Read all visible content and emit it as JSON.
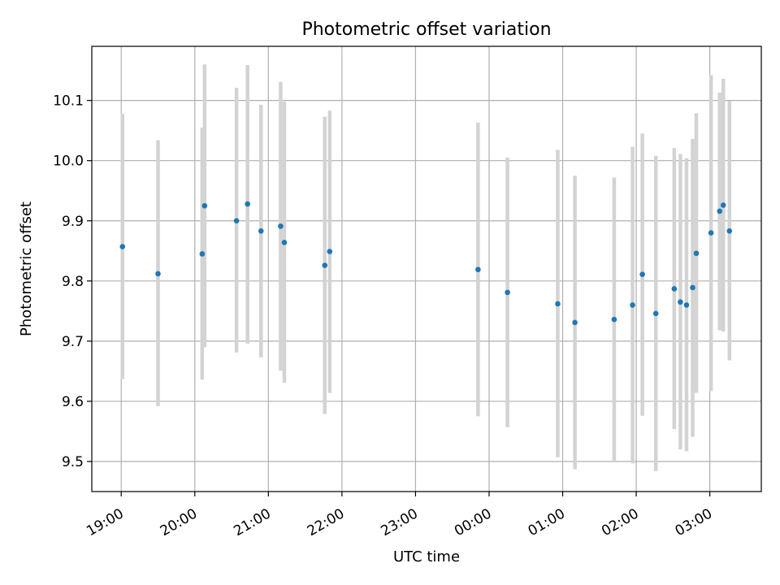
{
  "chart_data": {
    "type": "scatter",
    "title": "Photometric offset variation",
    "xlabel": "UTC time",
    "ylabel": "Photometric offset",
    "x_time_range": [
      "2024-01-01T18:36:00",
      "2024-01-02T03:42:00"
    ],
    "ylim": [
      9.45,
      10.19
    ],
    "grid": true,
    "x_ticks": [
      {
        "t": "2024-01-01T19:00:00",
        "label": "19:00"
      },
      {
        "t": "2024-01-01T20:00:00",
        "label": "20:00"
      },
      {
        "t": "2024-01-01T21:00:00",
        "label": "21:00"
      },
      {
        "t": "2024-01-01T22:00:00",
        "label": "22:00"
      },
      {
        "t": "2024-01-01T23:00:00",
        "label": "23:00"
      },
      {
        "t": "2024-01-02T00:00:00",
        "label": "00:00"
      },
      {
        "t": "2024-01-02T01:00:00",
        "label": "01:00"
      },
      {
        "t": "2024-01-02T02:00:00",
        "label": "02:00"
      },
      {
        "t": "2024-01-02T03:00:00",
        "label": "03:00"
      }
    ],
    "y_ticks": [
      {
        "v": 9.5,
        "label": "9.5"
      },
      {
        "v": 9.6,
        "label": "9.6"
      },
      {
        "v": 9.7,
        "label": "9.7"
      },
      {
        "v": 9.8,
        "label": "9.8"
      },
      {
        "v": 9.9,
        "label": "9.9"
      },
      {
        "v": 10.0,
        "label": "10.0"
      },
      {
        "v": 10.1,
        "label": "10.1"
      }
    ],
    "marker_color": "#1f77b4",
    "errorbar_color": "#d3d3d3",
    "points": [
      {
        "t": "2024-01-01T19:01:00",
        "y": 9.857,
        "lo": 9.637,
        "hi": 10.078
      },
      {
        "t": "2024-01-01T19:30:00",
        "y": 9.812,
        "lo": 9.592,
        "hi": 10.034
      },
      {
        "t": "2024-01-01T20:06:00",
        "y": 9.845,
        "lo": 9.636,
        "hi": 10.055
      },
      {
        "t": "2024-01-01T20:08:00",
        "y": 9.925,
        "lo": 9.69,
        "hi": 10.16
      },
      {
        "t": "2024-01-01T20:34:00",
        "y": 9.9,
        "lo": 9.681,
        "hi": 10.121
      },
      {
        "t": "2024-01-01T20:43:00",
        "y": 9.928,
        "lo": 9.696,
        "hi": 10.159
      },
      {
        "t": "2024-01-01T20:54:00",
        "y": 9.883,
        "lo": 9.673,
        "hi": 10.093
      },
      {
        "t": "2024-01-01T21:10:00",
        "y": 9.891,
        "lo": 9.651,
        "hi": 10.131
      },
      {
        "t": "2024-01-01T21:13:00",
        "y": 9.864,
        "lo": 9.631,
        "hi": 10.098
      },
      {
        "t": "2024-01-01T21:46:00",
        "y": 9.826,
        "lo": 9.579,
        "hi": 10.073
      },
      {
        "t": "2024-01-01T21:50:00",
        "y": 9.849,
        "lo": 9.614,
        "hi": 10.083
      },
      {
        "t": "2024-01-01T23:51:00",
        "y": 9.819,
        "lo": 9.575,
        "hi": 10.063
      },
      {
        "t": "2024-01-02T00:15:00",
        "y": 9.781,
        "lo": 9.557,
        "hi": 10.005
      },
      {
        "t": "2024-01-02T00:56:00",
        "y": 9.762,
        "lo": 9.507,
        "hi": 10.018
      },
      {
        "t": "2024-01-02T01:10:00",
        "y": 9.731,
        "lo": 9.487,
        "hi": 9.975
      },
      {
        "t": "2024-01-02T01:42:00",
        "y": 9.736,
        "lo": 9.5,
        "hi": 9.972
      },
      {
        "t": "2024-01-02T01:57:00",
        "y": 9.76,
        "lo": 9.497,
        "hi": 10.023
      },
      {
        "t": "2024-01-02T02:05:00",
        "y": 9.811,
        "lo": 9.576,
        "hi": 10.045
      },
      {
        "t": "2024-01-02T02:16:00",
        "y": 9.746,
        "lo": 9.484,
        "hi": 10.008
      },
      {
        "t": "2024-01-02T02:31:00",
        "y": 9.787,
        "lo": 9.554,
        "hi": 10.021
      },
      {
        "t": "2024-01-02T02:36:00",
        "y": 9.765,
        "lo": 9.52,
        "hi": 10.011
      },
      {
        "t": "2024-01-02T02:41:00",
        "y": 9.76,
        "lo": 9.517,
        "hi": 10.004
      },
      {
        "t": "2024-01-02T02:46:00",
        "y": 9.789,
        "lo": 9.541,
        "hi": 10.036
      },
      {
        "t": "2024-01-02T02:49:00",
        "y": 9.846,
        "lo": 9.614,
        "hi": 10.079
      },
      {
        "t": "2024-01-02T03:01:00",
        "y": 9.88,
        "lo": 9.617,
        "hi": 10.142
      },
      {
        "t": "2024-01-02T03:08:00",
        "y": 9.916,
        "lo": 9.718,
        "hi": 10.113
      },
      {
        "t": "2024-01-02T03:11:00",
        "y": 9.926,
        "lo": 9.716,
        "hi": 10.136
      },
      {
        "t": "2024-01-02T03:16:00",
        "y": 9.883,
        "lo": 9.668,
        "hi": 10.099
      }
    ]
  }
}
